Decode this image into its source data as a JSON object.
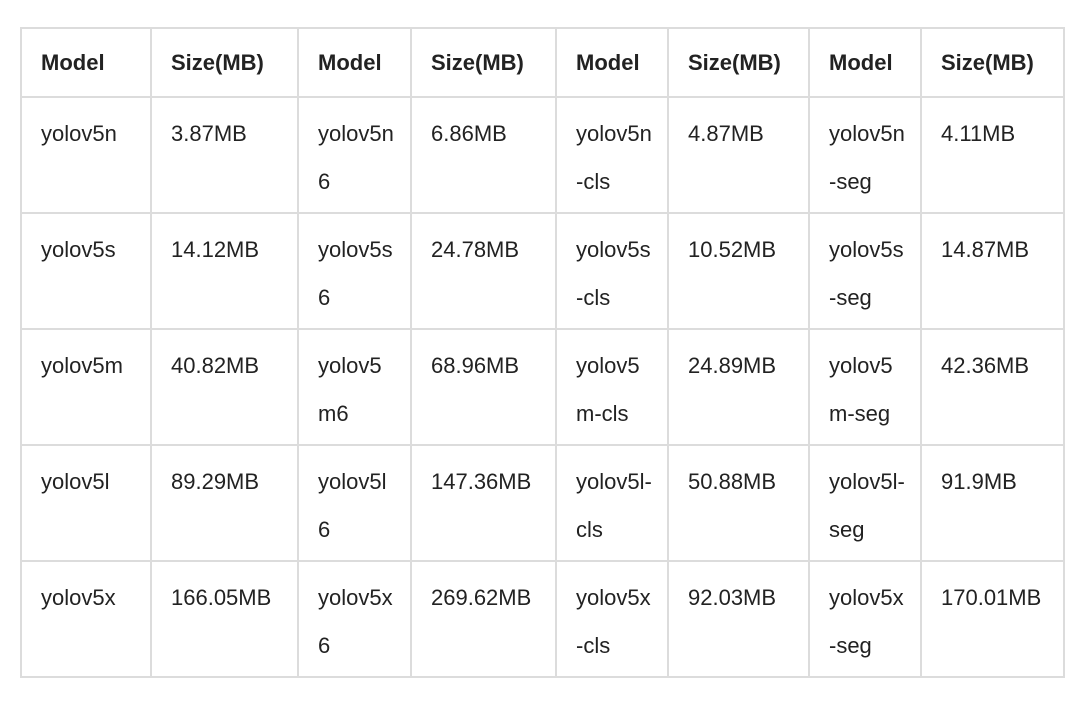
{
  "table": {
    "headers": [
      "Model",
      "Size(MB)",
      "Model",
      "Size(MB)",
      "Model",
      "Size(MB)",
      "Model",
      "Size(MB)"
    ],
    "rows": [
      [
        "yolov5n",
        "3.87MB",
        "yolov5n6",
        "6.86MB",
        "yolov5n-cls",
        "4.87MB",
        "yolov5n-seg",
        "4.11MB"
      ],
      [
        "yolov5s",
        "14.12MB",
        "yolov5s6",
        "24.78MB",
        "yolov5s-cls",
        "10.52MB",
        "yolov5s-seg",
        "14.87MB"
      ],
      [
        "yolov5m",
        "40.82MB",
        "yolov5m6",
        "68.96MB",
        "yolov5m-cls",
        "24.89MB",
        "yolov5m-seg",
        "42.36MB"
      ],
      [
        "yolov5l",
        "89.29MB",
        "yolov5l6",
        "147.36MB",
        "yolov5l-cls",
        "50.88MB",
        "yolov5l-seg",
        "91.9MB"
      ],
      [
        "yolov5x",
        "166.05MB",
        "yolov5x6",
        "269.62MB",
        "yolov5x-cls",
        "92.03MB",
        "yolov5x-seg",
        "170.01MB"
      ]
    ]
  }
}
